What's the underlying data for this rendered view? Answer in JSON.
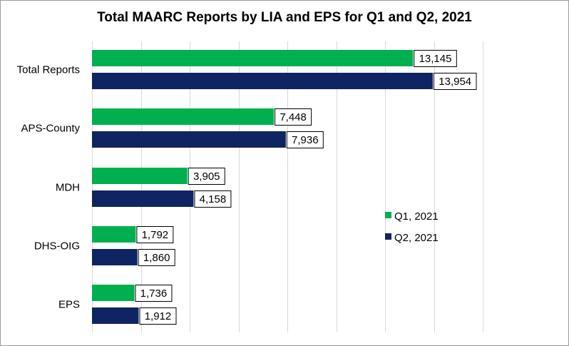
{
  "chart_data": {
    "type": "bar",
    "orientation": "horizontal",
    "title": "Total MAARC Reports by LIA and EPS for Q1 and Q2, 2021",
    "categories": [
      "Total Reports",
      "APS-County",
      "MDH",
      "DHS-OIG",
      "EPS"
    ],
    "series": [
      {
        "name": "Q1, 2021",
        "color": "#00b050",
        "values": [
          13145,
          7448,
          3905,
          1792,
          1736
        ],
        "labels": [
          "13,145",
          "7,448",
          "3,905",
          "1,792",
          "1,736"
        ]
      },
      {
        "name": "Q2, 2021",
        "color": "#0f2462",
        "values": [
          13954,
          7936,
          4158,
          1860,
          1912
        ],
        "labels": [
          "13,954",
          "7,936",
          "4,158",
          "1,860",
          "1,912"
        ]
      }
    ],
    "xlim": [
      0,
      16000
    ],
    "x_grid_step": 2000,
    "grid": true,
    "legend_position": "right",
    "xlabel": "",
    "ylabel": ""
  }
}
